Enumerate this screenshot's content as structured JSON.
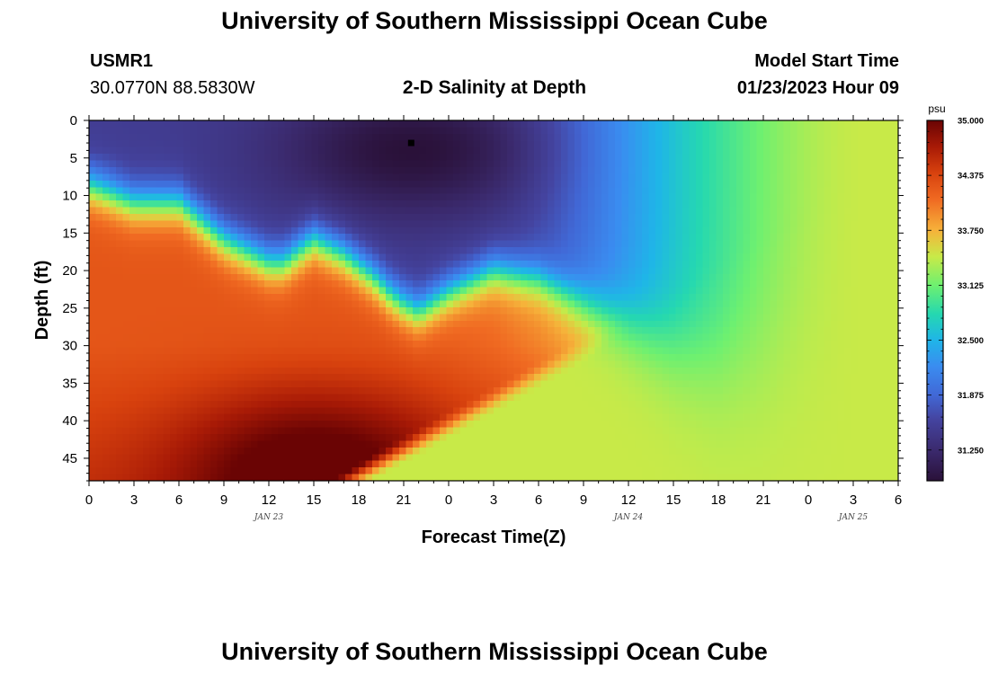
{
  "page": {
    "title": "University of Southern Mississippi Ocean Cube",
    "station_id": "USMR1",
    "coordinates": "30.0770N  88.5830W",
    "subtitle": "2-D Salinity at Depth",
    "model_start_label": "Model Start Time",
    "model_start_value": "01/23/2023 Hour 09",
    "footer_title": "University of Southern Mississippi Ocean Cube"
  },
  "chart_data": {
    "type": "heatmap",
    "title": "2-D Salinity at Depth",
    "xlabel": "Forecast Time(Z)",
    "ylabel": "Depth (ft)",
    "x_range_hours": [
      0,
      54
    ],
    "x_tick_labels": [
      "0",
      "3",
      "6",
      "9",
      "12",
      "15",
      "18",
      "21",
      "0",
      "3",
      "6",
      "9",
      "12",
      "15",
      "18",
      "21",
      "0",
      "3",
      "6"
    ],
    "date_labels": [
      {
        "text": "JAN 23",
        "hour": 12
      },
      {
        "text": "JAN 24",
        "hour": 36
      },
      {
        "text": "JAN 25",
        "hour": 51
      }
    ],
    "ylim": [
      48,
      0
    ],
    "y_ticks": [
      0,
      5,
      10,
      15,
      20,
      25,
      30,
      35,
      40,
      45
    ],
    "marker": {
      "hour": 21.5,
      "depth": 3
    },
    "colorbar": {
      "unit": "psu",
      "min": 30.9,
      "max": 35.0,
      "tick_labels": [
        "35.000",
        "34.375",
        "33.750",
        "33.125",
        "32.500",
        "31.875",
        "31.250"
      ],
      "stops": [
        {
          "v": 30.9,
          "color": "#2a1139"
        },
        {
          "v": 31.25,
          "color": "#3b2a6e"
        },
        {
          "v": 31.6,
          "color": "#4444a0"
        },
        {
          "v": 31.875,
          "color": "#4168d6"
        },
        {
          "v": 32.2,
          "color": "#3a8cf0"
        },
        {
          "v": 32.5,
          "color": "#1fb5e8"
        },
        {
          "v": 32.8,
          "color": "#25d8b0"
        },
        {
          "v": 33.125,
          "color": "#6ef070"
        },
        {
          "v": 33.45,
          "color": "#c8ea48"
        },
        {
          "v": 33.75,
          "color": "#f6b23a"
        },
        {
          "v": 34.1,
          "color": "#f06a22"
        },
        {
          "v": 34.4,
          "color": "#d8420e"
        },
        {
          "v": 34.7,
          "color": "#a81a06"
        },
        {
          "v": 35.0,
          "color": "#6a0404"
        }
      ]
    },
    "boundary_depth_by_hour": [
      [
        0,
        9
      ],
      [
        3,
        11
      ],
      [
        6,
        11
      ],
      [
        9,
        16
      ],
      [
        12,
        19
      ],
      [
        13,
        19
      ],
      [
        15,
        16
      ],
      [
        17,
        18
      ],
      [
        19,
        21
      ],
      [
        20,
        23
      ],
      [
        21,
        24.5
      ],
      [
        22,
        25.5
      ],
      [
        24,
        23
      ],
      [
        27,
        20
      ],
      [
        30,
        21
      ],
      [
        33,
        24
      ],
      [
        36,
        27
      ],
      [
        39,
        30
      ],
      [
        42,
        32
      ],
      [
        45,
        31
      ],
      [
        48,
        28
      ],
      [
        51,
        26
      ],
      [
        54,
        25
      ]
    ],
    "surface_min_hour": 21.5,
    "surface_min_salinity": 30.9,
    "bottom_max_hour": 15,
    "bottom_max_salinity": 35.0,
    "bottom_edge_hour": 17.5,
    "east_salinity": 33.45
  }
}
